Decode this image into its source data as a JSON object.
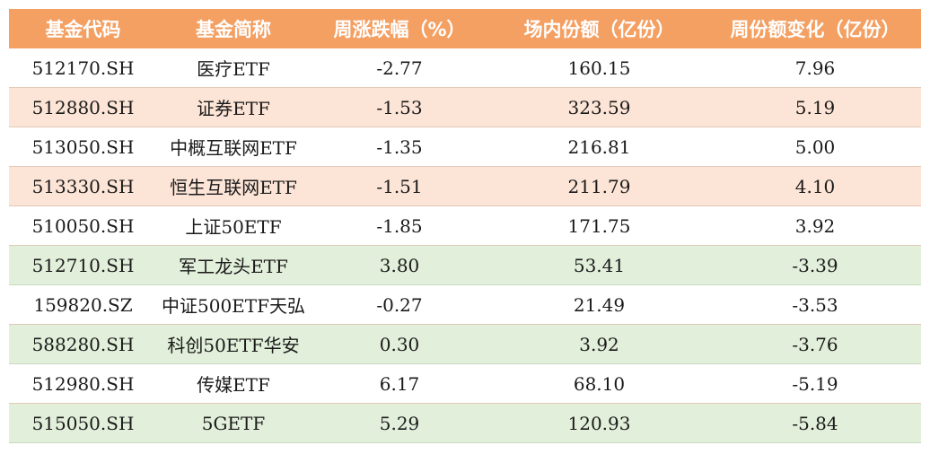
{
  "headers": [
    "基金代码",
    "基金简称",
    "周涨跌幅（%）",
    "场内份额（亿份）",
    "周份额变化（亿份）"
  ],
  "rows": [
    {
      "code": "512170.SH",
      "name": "医疗ETF",
      "weekly_change": "-2.77",
      "shares": "160.15",
      "share_change": "7.96",
      "tone": "white"
    },
    {
      "code": "512880.SH",
      "name": "证券ETF",
      "weekly_change": "-1.53",
      "shares": "323.59",
      "share_change": "5.19",
      "tone": "peach"
    },
    {
      "code": "513050.SH",
      "name": "中概互联网ETF",
      "weekly_change": "-1.35",
      "shares": "216.81",
      "share_change": "5.00",
      "tone": "white"
    },
    {
      "code": "513330.SH",
      "name": "恒生互联网ETF",
      "weekly_change": "-1.51",
      "shares": "211.79",
      "share_change": "4.10",
      "tone": "peach"
    },
    {
      "code": "510050.SH",
      "name": "上证50ETF",
      "weekly_change": "-1.85",
      "shares": "171.75",
      "share_change": "3.92",
      "tone": "white"
    },
    {
      "code": "512710.SH",
      "name": "军工龙头ETF",
      "weekly_change": "3.80",
      "shares": "53.41",
      "share_change": "-3.39",
      "tone": "green"
    },
    {
      "code": "159820.SZ",
      "name": "中证500ETF天弘",
      "weekly_change": "-0.27",
      "shares": "21.49",
      "share_change": "-3.53",
      "tone": "white"
    },
    {
      "code": "588280.SH",
      "name": "科创50ETF华安",
      "weekly_change": "0.30",
      "shares": "3.92",
      "share_change": "-3.76",
      "tone": "green"
    },
    {
      "code": "512980.SH",
      "name": "传媒ETF",
      "weekly_change": "6.17",
      "shares": "68.10",
      "share_change": "-5.19",
      "tone": "white"
    },
    {
      "code": "515050.SH",
      "name": "5GETF",
      "weekly_change": "5.29",
      "shares": "120.93",
      "share_change": "-5.84",
      "tone": "green"
    }
  ],
  "colors": {
    "header": "#F4A063",
    "peach": "#FCE4D6",
    "green": "#E2EFDA"
  }
}
